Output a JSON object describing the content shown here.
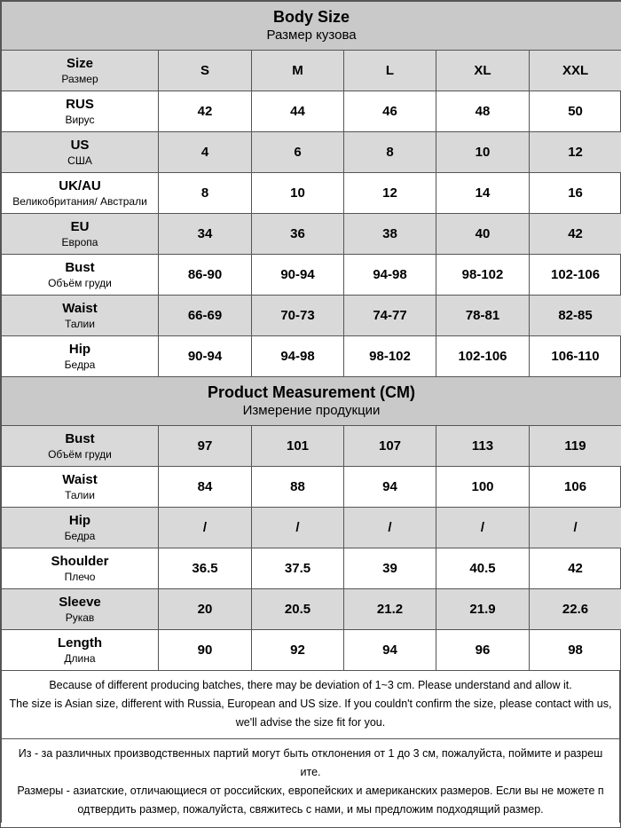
{
  "body_size": {
    "title": "Body Size",
    "subtitle": "Размер кузова",
    "header": {
      "label": "Size",
      "sublabel": "Размер",
      "sizes": [
        "S",
        "M",
        "L",
        "XL",
        "XXL"
      ]
    },
    "rows": [
      {
        "label": "RUS",
        "sublabel": "Вирус",
        "values": [
          "42",
          "44",
          "46",
          "48",
          "50"
        ]
      },
      {
        "label": "US",
        "sublabel": "США",
        "values": [
          "4",
          "6",
          "8",
          "10",
          "12"
        ]
      },
      {
        "label": "UK/AU",
        "sublabel": "Великобритания/ Австрали",
        "values": [
          "8",
          "10",
          "12",
          "14",
          "16"
        ]
      },
      {
        "label": "EU",
        "sublabel": "Европа",
        "values": [
          "34",
          "36",
          "38",
          "40",
          "42"
        ]
      },
      {
        "label": "Bust",
        "sublabel": "Объём груди",
        "values": [
          "86-90",
          "90-94",
          "94-98",
          "98-102",
          "102-106"
        ]
      },
      {
        "label": "Waist",
        "sublabel": "Талии",
        "values": [
          "66-69",
          "70-73",
          "74-77",
          "78-81",
          "82-85"
        ]
      },
      {
        "label": "Hip",
        "sublabel": "Бедра",
        "values": [
          "90-94",
          "94-98",
          "98-102",
          "102-106",
          "106-110"
        ]
      }
    ]
  },
  "product_measurement": {
    "title": "Product Measurement (CM)",
    "subtitle": "Измерение продукции",
    "rows": [
      {
        "label": "Bust",
        "sublabel": "Объём груди",
        "values": [
          "97",
          "101",
          "107",
          "113",
          "119"
        ]
      },
      {
        "label": "Waist",
        "sublabel": "Талии",
        "values": [
          "84",
          "88",
          "94",
          "100",
          "106"
        ]
      },
      {
        "label": "Hip",
        "sublabel": "Бедра",
        "values": [
          "/",
          "/",
          "/",
          "/",
          "/"
        ]
      },
      {
        "label": "Shoulder",
        "sublabel": "Плечо",
        "values": [
          "36.5",
          "37.5",
          "39",
          "40.5",
          "42"
        ]
      },
      {
        "label": "Sleeve",
        "sublabel": "Рукав",
        "values": [
          "20",
          "20.5",
          "21.2",
          "21.9",
          "22.6"
        ]
      },
      {
        "label": "Length",
        "sublabel": "Длина",
        "values": [
          "90",
          "92",
          "94",
          "96",
          "98"
        ]
      }
    ]
  },
  "notes": {
    "en": [
      "Because of different producing batches, there may be deviation of 1~3 cm. Please understand and allow it.",
      "The size is Asian size, different with Russia, European and US size. If you couldn't confirm the size, please contact with us,",
      "we'll advise the size fit for you."
    ],
    "ru": [
      "Из - за различных производственных партий могут быть отклонения от 1 до 3 см, пожалуйста, поймите и разреш",
      "ите.",
      "Размеры - азиатские, отличающиеся от российских, европейских и американских размеров. Если вы не можете п",
      "одтвердить размер, пожалуйста, свяжитесь с нами, и мы предложим подходящий размер."
    ]
  }
}
